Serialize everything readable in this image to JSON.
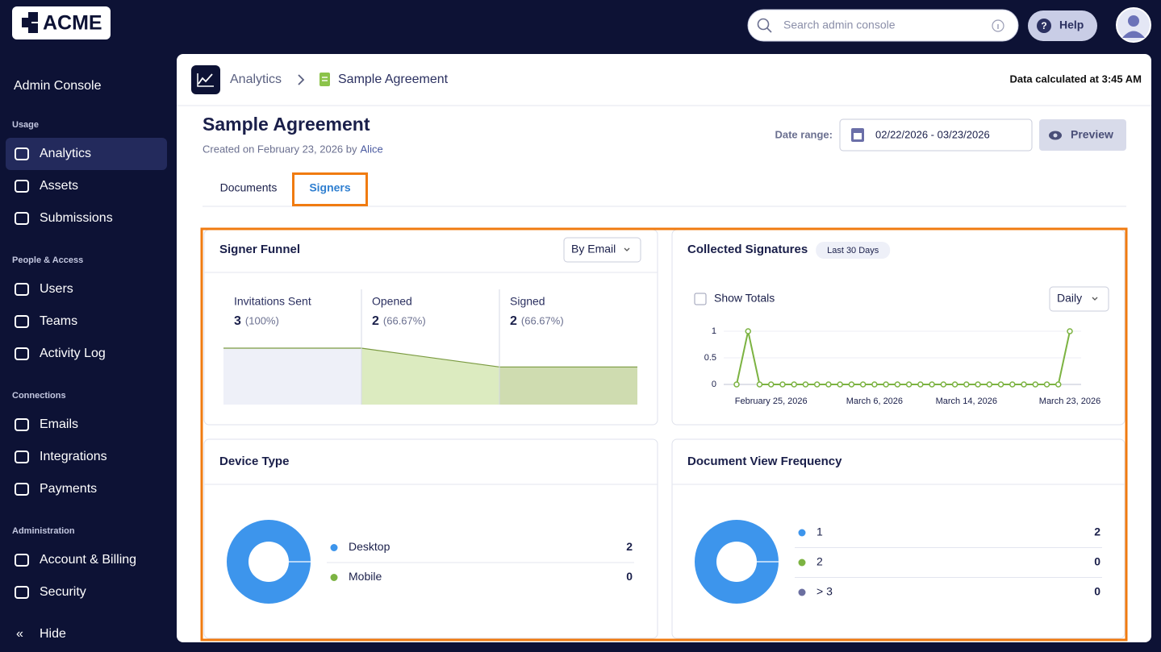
{
  "header": {
    "logo": "ACME",
    "search_placeholder": "Search admin console",
    "help": "Help"
  },
  "sidebar": {
    "title": "Admin Console",
    "sections": [
      {
        "heading": "Usage",
        "items": [
          "Analytics",
          "Assets",
          "Submissions"
        ]
      },
      {
        "heading": "People & Access",
        "items": [
          "Users",
          "Teams",
          "Activity Log"
        ]
      },
      {
        "heading": "Connections",
        "items": [
          "Emails",
          "Integrations",
          "Payments"
        ]
      },
      {
        "heading": "Administration",
        "items": [
          "Account & Billing",
          "Security"
        ]
      }
    ],
    "hide": "Hide"
  },
  "breadcrumb": [
    "Analytics",
    "Sample Agreement"
  ],
  "calculated": "Data calculated at 3:45 AM",
  "page": {
    "title": "Sample Agreement",
    "created": "Created on February 23, 2026 by",
    "author": "Alice",
    "date_range_label": "Date range:",
    "date_range": "02/22/2026 - 03/23/2026",
    "preview": "Preview",
    "tabs": [
      "Documents",
      "Signers"
    ]
  },
  "chart_data": [
    {
      "type": "funnel",
      "title": "Signer Funnel",
      "control": "By Email",
      "categories": [
        "Invitations Sent",
        "Opened",
        "Signed"
      ],
      "values": [
        3,
        2,
        2
      ],
      "percent_labels": [
        "(100%)",
        "(66.67%)",
        "(66.67%)"
      ],
      "colors": [
        "#eef0f8",
        "#dcebc0",
        "#cfdcb0"
      ],
      "line_color": "#7a9a40"
    },
    {
      "type": "line",
      "title": "Collected Signatures",
      "badge": "Last 30 Days",
      "checkbox": "Show Totals",
      "control": "Daily",
      "categories": [
        null,
        null,
        null,
        "February 25, 2026",
        null,
        null,
        null,
        null,
        null,
        null,
        null,
        null,
        "March 6, 2026",
        null,
        null,
        null,
        null,
        null,
        null,
        null,
        "March 14, 2026",
        null,
        null,
        null,
        null,
        null,
        null,
        null,
        null,
        "March 23, 2026"
      ],
      "values": [
        0,
        1,
        0,
        0,
        0,
        0,
        0,
        0,
        0,
        0,
        0,
        0,
        0,
        0,
        0,
        0,
        0,
        0,
        0,
        0,
        0,
        0,
        0,
        0,
        0,
        0,
        0,
        0,
        0,
        1
      ],
      "color": "#7cb342",
      "ylim": [
        0,
        1
      ],
      "yticks": [
        0,
        0.5,
        1
      ],
      "grid": true
    },
    {
      "type": "donut",
      "title": "Device Type",
      "categories": [
        "Desktop",
        "Mobile"
      ],
      "values": [
        2,
        0
      ],
      "colors": [
        "#3d95ec",
        "#7cb342"
      ]
    },
    {
      "type": "donut",
      "title": "Document View Frequency",
      "categories": [
        "1",
        "2",
        "> 3"
      ],
      "values": [
        2,
        0,
        0
      ],
      "colors": [
        "#3d95ec",
        "#7cb342",
        "#6b6fa0"
      ]
    }
  ]
}
